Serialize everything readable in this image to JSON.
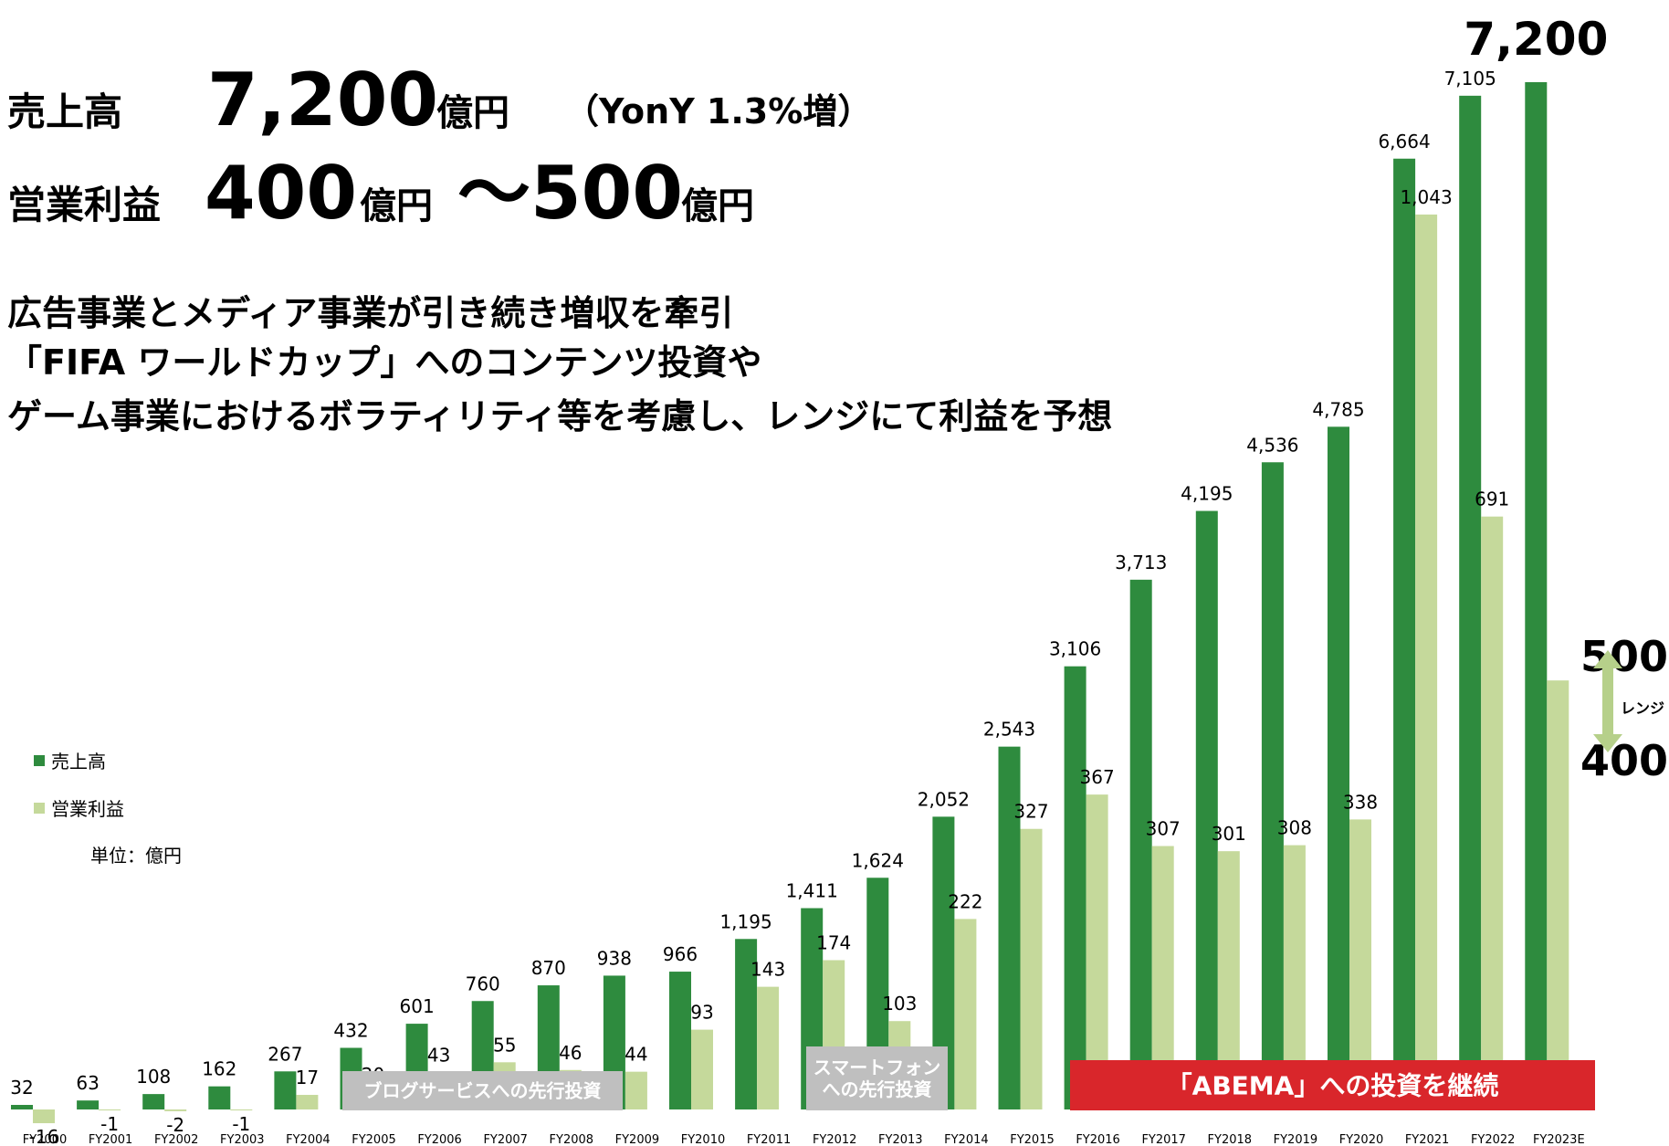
{
  "chart_data": {
    "type": "bar",
    "headline": {
      "sales_label": "売上高",
      "sales_value": "7,200",
      "sales_unit": "億円",
      "yoy": "（YonY 1.3%増）",
      "profit_label": "営業利益",
      "profit_low": "400",
      "profit_unit": "億円",
      "profit_high": "～500",
      "profit_unit2": "億円"
    },
    "subtitle": [
      "広告事業とメディア事業が引き続き増収を牽引",
      "「FIFA ワールドカップ」へのコンテンツ投資や",
      "ゲーム事業におけるボラティリティ等を考慮し、レンジにて利益を予想"
    ],
    "unit": "単位：億円",
    "categories": [
      "FY2000",
      "FY2001",
      "FY2002",
      "FY2003",
      "FY2004",
      "FY2005",
      "FY2006",
      "FY2007",
      "FY2008",
      "FY2009",
      "FY2010",
      "FY2011",
      "FY2012",
      "FY2013",
      "FY2014",
      "FY2015",
      "FY2016",
      "FY2017",
      "FY2018",
      "FY2019",
      "FY2020",
      "FY2021",
      "FY2022",
      "FY2023E"
    ],
    "series": [
      {
        "name": "売上高",
        "color": "#2e8b3e",
        "values": [
          32,
          63,
          108,
          162,
          267,
          432,
          601,
          760,
          870,
          938,
          966,
          1195,
          1411,
          1624,
          2052,
          2543,
          3106,
          3713,
          4195,
          4536,
          4785,
          6664,
          7105,
          7200
        ],
        "value_labels": [
          "32",
          "63",
          "108",
          "162",
          "267",
          "432",
          "601",
          "760",
          "870",
          "938",
          "966",
          "1,195",
          "1,411",
          "1,624",
          "2,052",
          "2,543",
          "3,106",
          "3,713",
          "4,195",
          "4,536",
          "4,785",
          "6,664",
          "7,105",
          "7,200"
        ]
      },
      {
        "name": "営業利益",
        "color": "#c5d99b",
        "axis": "y2",
        "values": [
          -16,
          -1,
          -2,
          -1,
          17,
          20,
          43,
          55,
          46,
          44,
          93,
          143,
          174,
          103,
          222,
          327,
          367,
          307,
          301,
          308,
          338,
          1043,
          691,
          500
        ],
        "value_labels": [
          "-16",
          "-1",
          "-2",
          "-1",
          "17",
          "20",
          "43",
          "55",
          "46",
          "44",
          "93",
          "143",
          "174",
          "103",
          "222",
          "327",
          "367",
          "307",
          "301",
          "308",
          "338",
          "1,043",
          "691",
          null
        ]
      }
    ],
    "ylim": [
      0,
      7776
    ],
    "y2lim": [
      0,
      1293
    ],
    "range": {
      "high": "500",
      "low": "400",
      "label": "レンジ"
    },
    "banners": [
      {
        "text": [
          "ブログサービスへの先行投資"
        ],
        "color": "#bfbfbf"
      },
      {
        "text": [
          "スマートフォン",
          "への先行投資"
        ],
        "color": "#bfbfbf"
      },
      {
        "text": [
          "「ABEMA」への投資を継続"
        ],
        "color": "#d9262b"
      }
    ]
  }
}
